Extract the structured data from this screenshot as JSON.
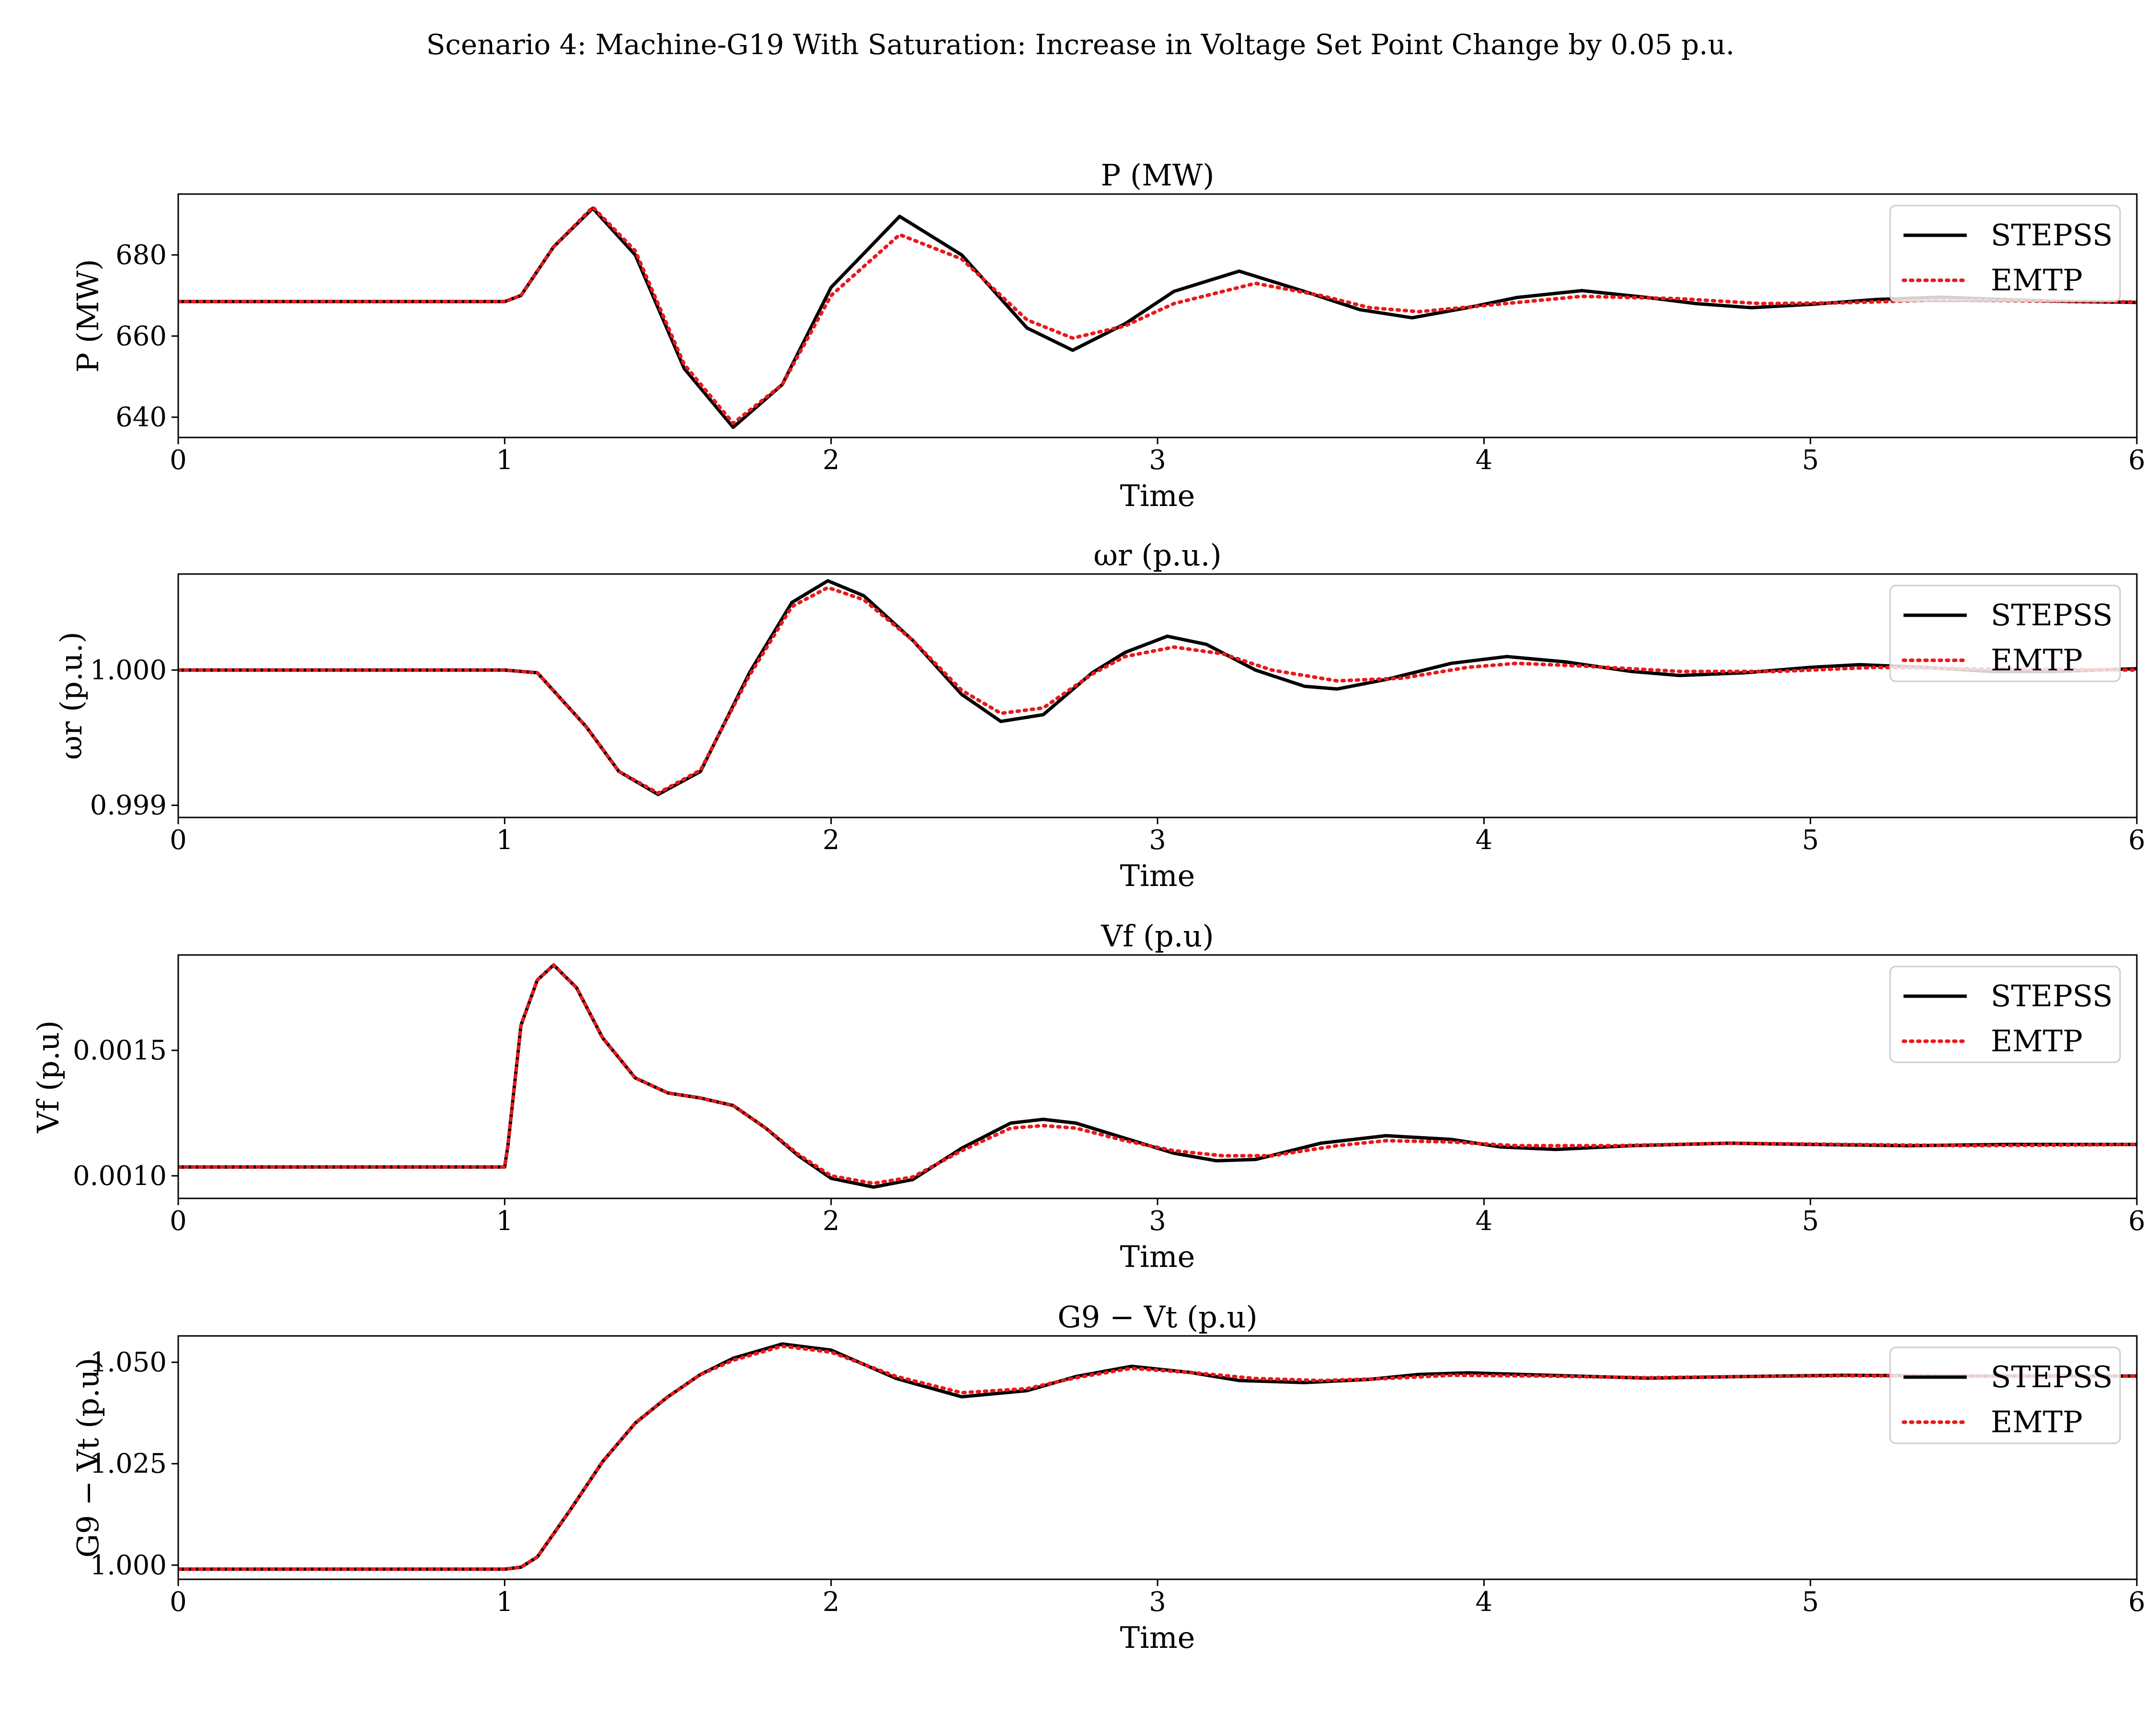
{
  "figure": {
    "suptitle": "Scenario 4: Machine-G19 With Saturation: Increase in Voltage Set Point Change by 0.05 p.u."
  },
  "chart_data": [
    {
      "type": "line",
      "title": "P (MW)",
      "xlabel": "Time",
      "ylabel": "P (MW)",
      "xlim": [
        0,
        6
      ],
      "ylim": [
        635,
        695
      ],
      "xticks": [
        0,
        1,
        2,
        3,
        4,
        5,
        6
      ],
      "xtick_labels": [
        "0",
        "1",
        "2",
        "3",
        "4",
        "5",
        "6"
      ],
      "yticks": [
        640,
        660,
        680
      ],
      "ytick_labels": [
        "640",
        "660",
        "680"
      ],
      "legend": "top-right",
      "series": [
        {
          "name": "STEPSS",
          "color": "#000000",
          "style": "solid",
          "x": [
            0,
            1.0,
            1.05,
            1.15,
            1.27,
            1.4,
            1.55,
            1.7,
            1.85,
            2.0,
            2.21,
            2.4,
            2.6,
            2.74,
            2.9,
            3.05,
            3.25,
            3.45,
            3.62,
            3.78,
            3.95,
            4.1,
            4.3,
            4.5,
            4.65,
            4.82,
            5.0,
            5.2,
            5.4,
            5.6,
            5.8,
            6.0
          ],
          "y": [
            668.5,
            668.5,
            670,
            682,
            691.5,
            680,
            652,
            637.5,
            648,
            672,
            689.5,
            680,
            662,
            656.5,
            663,
            671,
            676,
            671,
            666.5,
            664.5,
            667,
            669.5,
            671.2,
            669.5,
            668,
            667,
            667.8,
            669,
            669.6,
            669,
            668.5,
            668.3
          ]
        },
        {
          "name": "EMTP",
          "color": "#e8191c",
          "style": "dotted",
          "x": [
            0,
            1.0,
            1.05,
            1.15,
            1.27,
            1.4,
            1.55,
            1.7,
            1.85,
            2.0,
            2.21,
            2.4,
            2.6,
            2.74,
            2.9,
            3.05,
            3.3,
            3.5,
            3.65,
            3.8,
            4.0,
            4.3,
            4.6,
            4.85,
            5.1,
            5.4,
            5.7,
            6.0
          ],
          "y": [
            668.5,
            668.5,
            670,
            682,
            691.8,
            681,
            653,
            638.5,
            648,
            670,
            685,
            679,
            664,
            659.5,
            662.5,
            668,
            673,
            670,
            667,
            666,
            667.5,
            669.8,
            669.2,
            668,
            668.2,
            668.9,
            668.6,
            668.4
          ]
        }
      ]
    },
    {
      "type": "line",
      "title": "ωr (p.u.)",
      "xlabel": "Time",
      "ylabel": "ωr (p.u.)",
      "xlim": [
        0,
        6
      ],
      "ylim": [
        0.99891,
        1.00071
      ],
      "xticks": [
        0,
        1,
        2,
        3,
        4,
        5,
        6
      ],
      "xtick_labels": [
        "0",
        "1",
        "2",
        "3",
        "4",
        "5",
        "6"
      ],
      "yticks": [
        0.999,
        1.0
      ],
      "ytick_labels": [
        "0.999",
        "1.000"
      ],
      "legend": "top-right",
      "series": [
        {
          "name": "STEPSS",
          "color": "#000000",
          "style": "solid",
          "x": [
            0,
            1.0,
            1.1,
            1.25,
            1.35,
            1.47,
            1.6,
            1.75,
            1.88,
            1.99,
            2.1,
            2.25,
            2.4,
            2.52,
            2.65,
            2.8,
            2.9,
            3.03,
            3.15,
            3.3,
            3.45,
            3.55,
            3.7,
            3.9,
            4.07,
            4.25,
            4.45,
            4.6,
            4.8,
            5.0,
            5.15,
            5.35,
            5.55,
            5.75,
            6.0
          ],
          "y": [
            1.0,
            1.0,
            0.99998,
            0.99958,
            0.99925,
            0.99908,
            0.99925,
            0.99998,
            1.0005,
            1.00066,
            1.00055,
            1.00022,
            0.99982,
            0.99962,
            0.99967,
            0.99998,
            1.00013,
            1.00025,
            1.00019,
            1.0,
            0.99988,
            0.99986,
            0.99993,
            1.00005,
            1.0001,
            1.00006,
            0.99999,
            0.99996,
            0.99998,
            1.00002,
            1.00004,
            1.00002,
            0.99999,
            0.99999,
            1.00001
          ]
        },
        {
          "name": "EMTP",
          "color": "#e8191c",
          "style": "dotted",
          "x": [
            0,
            1.0,
            1.1,
            1.25,
            1.35,
            1.47,
            1.6,
            1.75,
            1.88,
            1.99,
            2.1,
            2.25,
            2.4,
            2.52,
            2.65,
            2.8,
            2.9,
            3.05,
            3.2,
            3.35,
            3.55,
            3.75,
            3.95,
            4.1,
            4.3,
            4.6,
            4.9,
            5.2,
            5.5,
            6.0
          ],
          "y": [
            1.0,
            1.0,
            0.99998,
            0.99958,
            0.99925,
            0.99909,
            0.99926,
            0.99996,
            1.00047,
            1.00061,
            1.00052,
            1.00022,
            0.99985,
            0.99968,
            0.99972,
            0.99997,
            1.0001,
            1.00017,
            1.00012,
            1.0,
            0.99992,
            0.99994,
            1.00002,
            1.00005,
            1.00003,
            0.99999,
            0.99999,
            1.00002,
            1.00001,
            1.0
          ]
        }
      ]
    },
    {
      "type": "line",
      "title": "Vf (p.u)",
      "xlabel": "Time",
      "ylabel": "Vf (p.u)",
      "xlim": [
        0,
        6
      ],
      "ylim": [
        0.00091,
        0.00188
      ],
      "xticks": [
        0,
        1,
        2,
        3,
        4,
        5,
        6
      ],
      "xtick_labels": [
        "0",
        "1",
        "2",
        "3",
        "4",
        "5",
        "6"
      ],
      "yticks": [
        0.001,
        0.0015
      ],
      "ytick_labels": [
        "0.0010",
        "0.0015"
      ],
      "legend": "top-right",
      "series": [
        {
          "name": "STEPSS",
          "color": "#000000",
          "style": "solid",
          "x": [
            0,
            1.0,
            1.01,
            1.05,
            1.1,
            1.15,
            1.22,
            1.3,
            1.4,
            1.5,
            1.6,
            1.7,
            1.8,
            1.9,
            2.0,
            2.13,
            2.25,
            2.4,
            2.55,
            2.65,
            2.75,
            2.9,
            3.05,
            3.18,
            3.3,
            3.5,
            3.7,
            3.9,
            4.05,
            4.22,
            4.45,
            4.75,
            5.0,
            5.3,
            5.6,
            6.0
          ],
          "y": [
            0.001035,
            0.001035,
            0.00112,
            0.0016,
            0.00178,
            0.00184,
            0.00175,
            0.00155,
            0.00139,
            0.00133,
            0.00131,
            0.00128,
            0.00119,
            0.00108,
            0.00099,
            0.000955,
            0.000985,
            0.00111,
            0.00121,
            0.001225,
            0.00121,
            0.00115,
            0.00109,
            0.00106,
            0.001065,
            0.00113,
            0.00116,
            0.001145,
            0.001115,
            0.001105,
            0.00112,
            0.00113,
            0.001125,
            0.00112,
            0.001125,
            0.001125
          ]
        },
        {
          "name": "EMTP",
          "color": "#e8191c",
          "style": "dotted",
          "x": [
            0,
            1.0,
            1.01,
            1.05,
            1.1,
            1.15,
            1.22,
            1.3,
            1.4,
            1.5,
            1.6,
            1.7,
            1.8,
            1.9,
            2.0,
            2.13,
            2.25,
            2.4,
            2.55,
            2.65,
            2.75,
            2.9,
            3.05,
            3.2,
            3.35,
            3.55,
            3.7,
            3.9,
            4.1,
            4.4,
            4.75,
            5.1,
            5.5,
            6.0
          ],
          "y": [
            0.001035,
            0.001035,
            0.00112,
            0.0016,
            0.00178,
            0.00184,
            0.00175,
            0.00155,
            0.00139,
            0.00133,
            0.00131,
            0.00128,
            0.00119,
            0.001085,
            0.001,
            0.00097,
            0.000995,
            0.0011,
            0.00119,
            0.0012,
            0.00119,
            0.00114,
            0.0011,
            0.00108,
            0.00108,
            0.00112,
            0.00114,
            0.001135,
            0.00112,
            0.00112,
            0.00113,
            0.001125,
            0.00112,
            0.001125
          ]
        }
      ]
    },
    {
      "type": "line",
      "title": "G9 − Vt (p.u)",
      "xlabel": "Time",
      "ylabel": "G9 − Vt (p.u)",
      "xlim": [
        0,
        6
      ],
      "ylim": [
        0.9965,
        1.0565
      ],
      "xticks": [
        0,
        1,
        2,
        3,
        4,
        5,
        6
      ],
      "xtick_labels": [
        "0",
        "1",
        "2",
        "3",
        "4",
        "5",
        "6"
      ],
      "yticks": [
        1.0,
        1.025,
        1.05
      ],
      "ytick_labels": [
        "1.000",
        "1.025",
        "1.050"
      ],
      "legend": "top-right",
      "series": [
        {
          "name": "STEPSS",
          "color": "#000000",
          "style": "solid",
          "x": [
            0,
            1.0,
            1.05,
            1.1,
            1.2,
            1.3,
            1.4,
            1.5,
            1.6,
            1.7,
            1.85,
            2.0,
            2.2,
            2.4,
            2.6,
            2.75,
            2.92,
            3.1,
            3.25,
            3.45,
            3.65,
            3.8,
            3.95,
            4.2,
            4.5,
            4.8,
            5.1,
            5.5,
            6.0
          ],
          "y": [
            0.999,
            0.999,
            0.9995,
            1.002,
            1.0135,
            1.0255,
            1.035,
            1.0415,
            1.047,
            1.051,
            1.0545,
            1.053,
            1.046,
            1.0415,
            1.043,
            1.0465,
            1.049,
            1.0475,
            1.0455,
            1.045,
            1.0458,
            1.047,
            1.0474,
            1.0468,
            1.0461,
            1.0465,
            1.0468,
            1.0466,
            1.0466
          ]
        },
        {
          "name": "EMTP",
          "color": "#e8191c",
          "style": "dotted",
          "x": [
            0,
            1.0,
            1.05,
            1.1,
            1.2,
            1.3,
            1.4,
            1.5,
            1.6,
            1.7,
            1.85,
            2.0,
            2.2,
            2.4,
            2.6,
            2.75,
            2.92,
            3.1,
            3.3,
            3.5,
            3.7,
            3.9,
            4.2,
            4.5,
            4.8,
            5.1,
            5.5,
            6.0
          ],
          "y": [
            0.999,
            0.999,
            0.9995,
            1.002,
            1.0135,
            1.0255,
            1.035,
            1.0415,
            1.047,
            1.0505,
            1.054,
            1.0525,
            1.0465,
            1.0425,
            1.0435,
            1.0462,
            1.0485,
            1.0475,
            1.046,
            1.0455,
            1.046,
            1.0468,
            1.0466,
            1.0462,
            1.0465,
            1.0467,
            1.0466,
            1.0466
          ]
        }
      ]
    }
  ]
}
